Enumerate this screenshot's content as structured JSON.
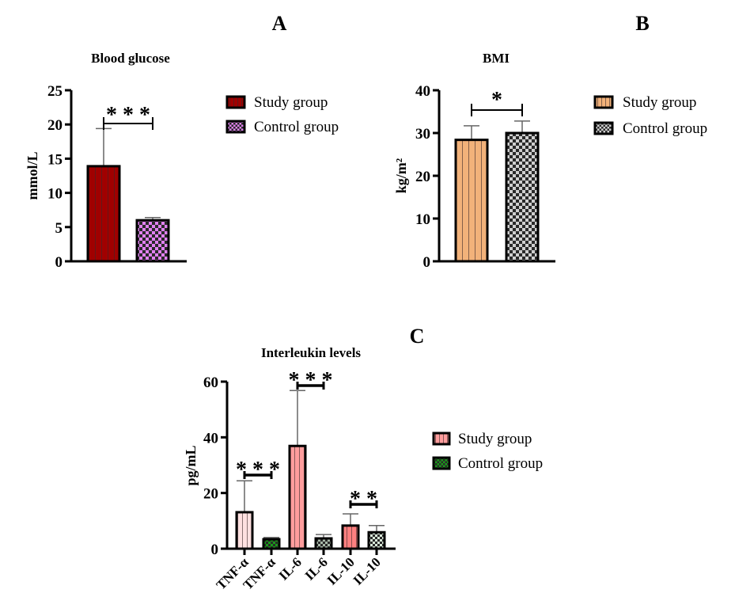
{
  "figure": {
    "panels": [
      "A",
      "B",
      "C"
    ]
  },
  "chart_data": [
    {
      "panel": "A",
      "type": "bar",
      "title": "Blood glucose",
      "xlabel": "",
      "ylabel": "mmol/L",
      "ylim": [
        0,
        25
      ],
      "yticks": [
        0,
        5,
        10,
        15,
        20,
        25
      ],
      "categories": [
        "Study group",
        "Control group"
      ],
      "values": [
        13.9,
        6.0
      ],
      "error_upper": [
        19.4,
        6.4
      ],
      "colors": [
        "#a00000",
        "#e080f0"
      ],
      "patterns": [
        "vertical-stripes",
        "checker"
      ],
      "legend": [
        {
          "label": "Study group",
          "color": "#a00000",
          "pattern": "vertical-stripes"
        },
        {
          "label": "Control group",
          "color": "#e080f0",
          "pattern": "checker"
        }
      ],
      "legend_position": "right",
      "significance": [
        {
          "from": 0,
          "to": 1,
          "label": "***"
        }
      ]
    },
    {
      "panel": "B",
      "type": "bar",
      "title": "BMI",
      "xlabel": "",
      "ylabel": "kg/m²",
      "ylim": [
        0,
        40
      ],
      "yticks": [
        0,
        10,
        20,
        30,
        40
      ],
      "categories": [
        "Study group",
        "Control group"
      ],
      "values": [
        28.4,
        30.0
      ],
      "error_upper": [
        31.7,
        32.8
      ],
      "colors": [
        "#f2b27a",
        "#cfcfcf"
      ],
      "patterns": [
        "vertical-stripes",
        "checker"
      ],
      "legend": [
        {
          "label": "Study group",
          "color": "#f2b27a",
          "pattern": "vertical-stripes"
        },
        {
          "label": "Control group",
          "color": "#cfcfcf",
          "pattern": "checker"
        }
      ],
      "legend_position": "right",
      "significance": [
        {
          "from": 0,
          "to": 1,
          "label": "*"
        }
      ]
    },
    {
      "panel": "C",
      "type": "bar",
      "title": "Interleukin levels",
      "xlabel": "",
      "ylabel": "pg/mL",
      "ylim": [
        0,
        60
      ],
      "yticks": [
        0,
        20,
        40,
        60
      ],
      "categories": [
        "TNF-α",
        "TNF-α",
        "IL-6",
        "IL-6",
        "IL-10",
        "IL-10"
      ],
      "groups": [
        "Study group",
        "Control group",
        "Study group",
        "Control group",
        "Study group",
        "Control group"
      ],
      "values": [
        13.1,
        3.4,
        36.9,
        3.7,
        8.3,
        5.9
      ],
      "error_upper": [
        24.4,
        4.0,
        56.8,
        5.1,
        12.5,
        8.3
      ],
      "colors": [
        "#ffe0e0",
        "#1a9a1a",
        "#ff9d9d",
        "#a8b8a8",
        "#ff8080",
        "#d8e8d8"
      ],
      "patterns": [
        "vertical-stripes",
        "checker",
        "vertical-stripes",
        "checker",
        "vertical-stripes",
        "checker"
      ],
      "legend": [
        {
          "label": "Study group",
          "color": "#ff9d9d",
          "pattern": "vertical-stripes"
        },
        {
          "label": "Control group",
          "color": "#1a9a1a",
          "pattern": "checker"
        }
      ],
      "legend_position": "right",
      "significance": [
        {
          "from": 0,
          "to": 1,
          "label": "***"
        },
        {
          "from": 2,
          "to": 3,
          "label": "***"
        },
        {
          "from": 4,
          "to": 5,
          "label": "**"
        }
      ]
    }
  ]
}
